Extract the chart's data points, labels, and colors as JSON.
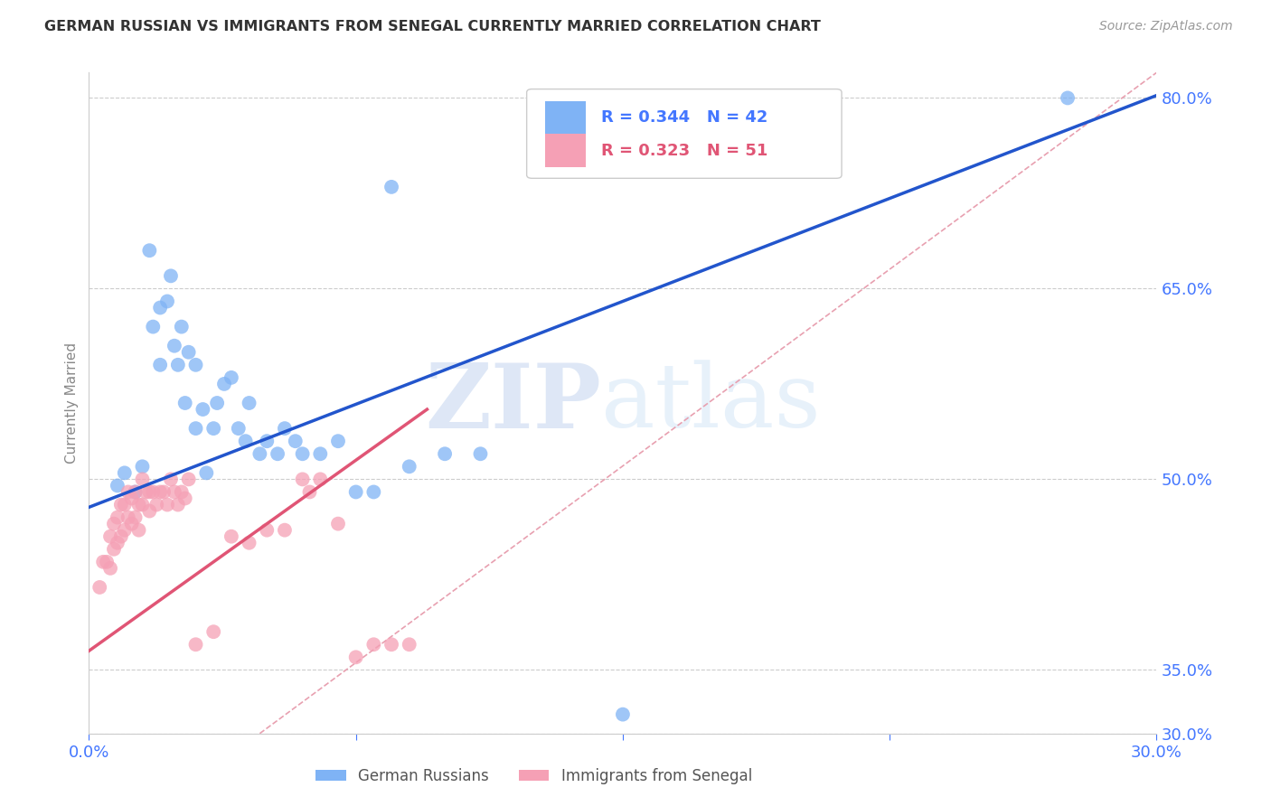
{
  "title": "GERMAN RUSSIAN VS IMMIGRANTS FROM SENEGAL CURRENTLY MARRIED CORRELATION CHART",
  "source": "Source: ZipAtlas.com",
  "ylabel": "Currently Married",
  "xlim": [
    0.0,
    0.3
  ],
  "ylim": [
    0.3,
    0.82
  ],
  "xticks": [
    0.0,
    0.075,
    0.15,
    0.225,
    0.3
  ],
  "xticklabels": [
    "0.0%",
    "",
    "",
    "",
    "30.0%"
  ],
  "ytick_labels_right": [
    "80.0%",
    "65.0%",
    "50.0%",
    "35.0%",
    "30.0%"
  ],
  "ytick_positions_right": [
    0.8,
    0.65,
    0.5,
    0.35,
    0.3
  ],
  "grid_color": "#cccccc",
  "background_color": "#ffffff",
  "blue_color": "#7fb3f5",
  "pink_color": "#f5a0b5",
  "axis_label_color": "#4477ff",
  "blue_line_color": "#2255cc",
  "pink_line_color": "#e05575",
  "diag_line_color": "#e8a0b0",
  "legend_r1": "R = 0.344",
  "legend_n1": "N = 42",
  "legend_r2": "R = 0.323",
  "legend_n2": "N = 51",
  "watermark_zip": "ZIP",
  "watermark_atlas": "atlas",
  "blue_line_x": [
    0.0,
    0.3
  ],
  "blue_line_y": [
    0.478,
    0.802
  ],
  "pink_line_x": [
    0.0,
    0.095
  ],
  "pink_line_y": [
    0.365,
    0.555
  ],
  "diag_line_x": [
    0.048,
    0.3
  ],
  "diag_line_y": [
    0.3,
    0.82
  ],
  "blue_scatter_x": [
    0.008,
    0.01,
    0.013,
    0.015,
    0.017,
    0.018,
    0.02,
    0.02,
    0.022,
    0.023,
    0.024,
    0.025,
    0.026,
    0.027,
    0.028,
    0.03,
    0.03,
    0.032,
    0.033,
    0.035,
    0.036,
    0.038,
    0.04,
    0.042,
    0.044,
    0.045,
    0.048,
    0.05,
    0.053,
    0.055,
    0.058,
    0.06,
    0.065,
    0.07,
    0.075,
    0.08,
    0.085,
    0.09,
    0.1,
    0.11,
    0.15,
    0.275
  ],
  "blue_scatter_y": [
    0.495,
    0.505,
    0.49,
    0.51,
    0.68,
    0.62,
    0.635,
    0.59,
    0.64,
    0.66,
    0.605,
    0.59,
    0.62,
    0.56,
    0.6,
    0.59,
    0.54,
    0.555,
    0.505,
    0.54,
    0.56,
    0.575,
    0.58,
    0.54,
    0.53,
    0.56,
    0.52,
    0.53,
    0.52,
    0.54,
    0.53,
    0.52,
    0.52,
    0.53,
    0.49,
    0.49,
    0.73,
    0.51,
    0.52,
    0.52,
    0.315,
    0.8
  ],
  "pink_scatter_x": [
    0.003,
    0.004,
    0.005,
    0.006,
    0.006,
    0.007,
    0.007,
    0.008,
    0.008,
    0.009,
    0.009,
    0.01,
    0.01,
    0.011,
    0.011,
    0.012,
    0.012,
    0.013,
    0.013,
    0.014,
    0.014,
    0.015,
    0.015,
    0.016,
    0.017,
    0.017,
    0.018,
    0.019,
    0.02,
    0.021,
    0.022,
    0.023,
    0.024,
    0.025,
    0.026,
    0.027,
    0.028,
    0.03,
    0.035,
    0.04,
    0.045,
    0.05,
    0.055,
    0.06,
    0.062,
    0.065,
    0.07,
    0.075,
    0.08,
    0.085,
    0.09
  ],
  "pink_scatter_y": [
    0.415,
    0.435,
    0.435,
    0.43,
    0.455,
    0.445,
    0.465,
    0.45,
    0.47,
    0.455,
    0.48,
    0.46,
    0.48,
    0.49,
    0.47,
    0.485,
    0.465,
    0.49,
    0.47,
    0.48,
    0.46,
    0.48,
    0.5,
    0.49,
    0.475,
    0.49,
    0.49,
    0.48,
    0.49,
    0.49,
    0.48,
    0.5,
    0.49,
    0.48,
    0.49,
    0.485,
    0.5,
    0.37,
    0.38,
    0.455,
    0.45,
    0.46,
    0.46,
    0.5,
    0.49,
    0.5,
    0.465,
    0.36,
    0.37,
    0.37,
    0.37
  ]
}
